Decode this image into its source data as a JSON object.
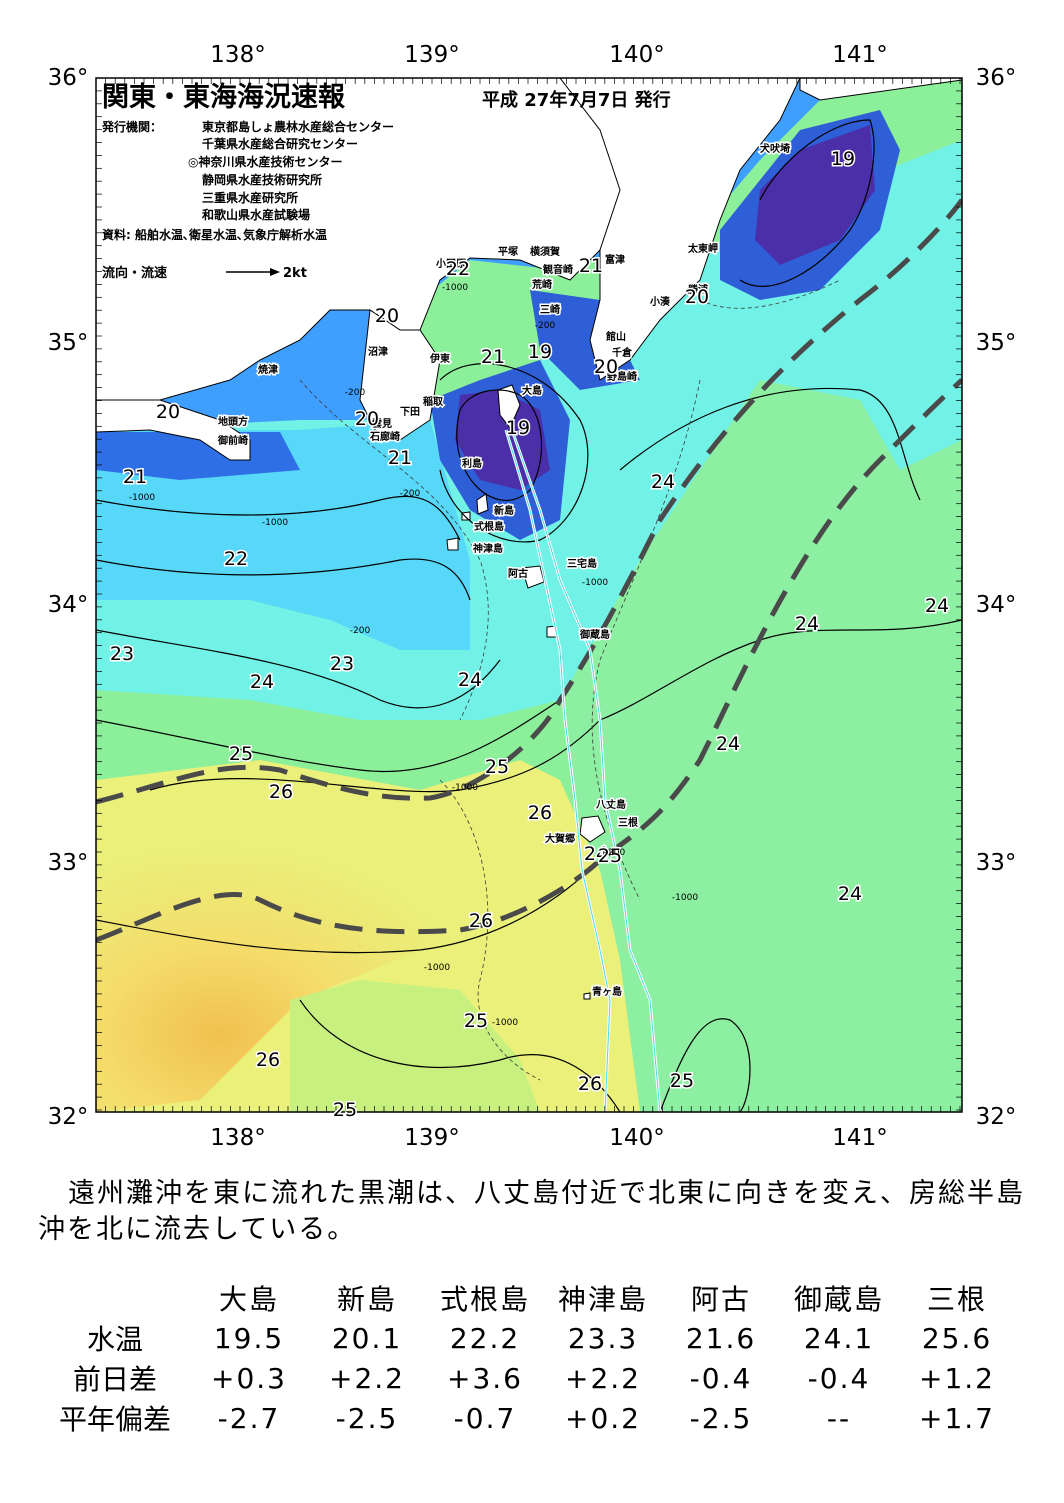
{
  "map": {
    "title": "関東・東海海況速報",
    "issue_date": "平成 27年7月7日 発行",
    "agencies_label": "発行機関：",
    "agencies": [
      "東京都島しょ農林水産総合センター",
      "千葉県水産総合研究センター",
      "◎神奈川県水産技術センター",
      "静岡県水産技術研究所",
      "三重県水産研究所",
      "和歌山県水産試験場"
    ],
    "sources": "資料: 船舶水温､衛星水温､気象庁解析水温",
    "current_legend": "流向・流速",
    "current_scale": "2kt",
    "lon_labels": [
      "138°",
      "139°",
      "140°",
      "141°"
    ],
    "lat_labels": [
      "36°",
      "35°",
      "34°",
      "33°",
      "32°"
    ],
    "place_names": [
      "犬吠埼",
      "太東岬",
      "小湊",
      "勝浦",
      "富津",
      "平塚",
      "横須賀",
      "観音崎",
      "荒崎",
      "三崎",
      "館山",
      "千倉",
      "野島崎",
      "小田原",
      "大島",
      "利島",
      "新島",
      "式根島",
      "神津島",
      "三宅島",
      "御蔵島",
      "八丈島",
      "三根",
      "大賀郷",
      "青ヶ島",
      "焼津",
      "沼津",
      "伊東",
      "稲取",
      "下田",
      "雲見",
      "石廊崎",
      "地頭方",
      "御前崎",
      "阿古"
    ],
    "isotherm_labels": [
      "19",
      "19",
      "19",
      "20",
      "20",
      "20",
      "20",
      "20",
      "21",
      "21",
      "21",
      "21",
      "22",
      "22",
      "23",
      "23",
      "24",
      "24",
      "24",
      "24",
      "24",
      "24",
      "24",
      "24",
      "25",
      "25",
      "25",
      "25",
      "25",
      "25",
      "26",
      "26",
      "26",
      "26",
      "26"
    ],
    "depth_labels": [
      "-200",
      "-1000"
    ],
    "colors": {
      "ocean_cold": "#4a2fa8",
      "ocean_cool": "#2f5fd6",
      "ocean_mid": "#3f9fff",
      "ocean_cyan": "#58e6f5",
      "ocean_green": "#7fefb6",
      "ocean_yellow": "#f0e070",
      "ocean_warm": "#f0c050",
      "kuroshio_axis": "#4a4a4a",
      "ship_track": "#ffffff"
    }
  },
  "caption": "遠州灘沖を東に流れた黒潮は、八丈島付近で北東に向きを変え、房総半島沖を北に流去している。",
  "table": {
    "columns": [
      "大島",
      "新島",
      "式根島",
      "神津島",
      "阿古",
      "御蔵島",
      "三根"
    ],
    "rows": [
      {
        "label": "水温",
        "values": [
          "19.5",
          "20.1",
          "22.2",
          "23.3",
          "21.6",
          "24.1",
          "25.6"
        ]
      },
      {
        "label": "前日差",
        "values": [
          "+0.3",
          "+2.2",
          "+3.6",
          "+2.2",
          "-0.4",
          "-0.4",
          "+1.2"
        ]
      },
      {
        "label": "平年偏差",
        "values": [
          "-2.7",
          "-2.5",
          "-0.7",
          "+0.2",
          "-2.5",
          "--",
          "+1.7"
        ]
      }
    ]
  }
}
